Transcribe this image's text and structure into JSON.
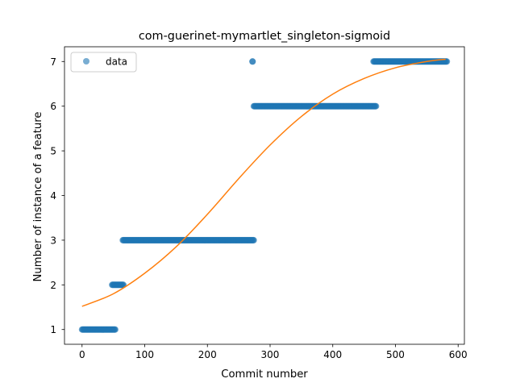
{
  "chart_data": {
    "type": "scatter",
    "title": "com-guerinet-mymartlet_singleton-sigmoid",
    "xlabel": "Commit number",
    "ylabel": "Number of instance of a feature",
    "xlim": [
      -28,
      610
    ],
    "ylim": [
      0.67,
      7.33
    ],
    "xticks": [
      0,
      100,
      200,
      300,
      400,
      500,
      600
    ],
    "yticks": [
      1,
      2,
      3,
      4,
      5,
      6,
      7
    ],
    "grid": false,
    "legend": {
      "placement": "upper-left",
      "entries": [
        "data"
      ]
    },
    "colors": {
      "data": "#1f77b4",
      "fit": "#ff7f0e"
    },
    "series": [
      {
        "name": "data",
        "kind": "scatter",
        "segments": [
          {
            "x_start": 0,
            "x_end": 53,
            "y": 1
          },
          {
            "x_start": 48,
            "x_end": 66,
            "y": 2
          },
          {
            "x_start": 65,
            "x_end": 274,
            "y": 3
          },
          {
            "x_start": 272,
            "x_end": 272,
            "y": 7
          },
          {
            "x_start": 274,
            "x_end": 469,
            "y": 6
          },
          {
            "x_start": 465,
            "x_end": 582,
            "y": 7
          }
        ]
      },
      {
        "kind": "line",
        "x": [
          0,
          50,
          100,
          150,
          200,
          250,
          300,
          350,
          400,
          450,
          500,
          550,
          580
        ],
        "y": [
          1.52,
          1.8,
          2.26,
          2.85,
          3.58,
          4.38,
          5.13,
          5.77,
          6.27,
          6.62,
          6.86,
          7.0,
          7.05
        ]
      }
    ]
  }
}
